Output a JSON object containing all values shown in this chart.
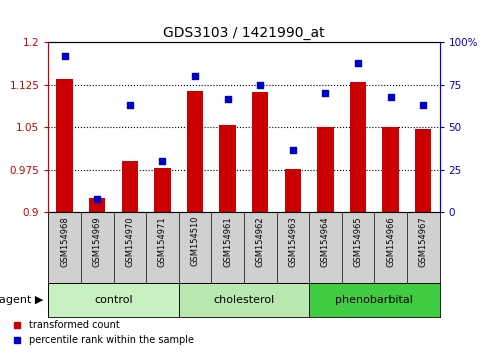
{
  "title": "GDS3103 / 1421990_at",
  "samples": [
    "GSM154968",
    "GSM154969",
    "GSM154970",
    "GSM154971",
    "GSM154510",
    "GSM154961",
    "GSM154962",
    "GSM154963",
    "GSM154964",
    "GSM154965",
    "GSM154966",
    "GSM154967"
  ],
  "transformed_count": [
    1.135,
    0.925,
    0.99,
    0.978,
    1.115,
    1.055,
    1.113,
    0.977,
    1.05,
    1.13,
    1.05,
    1.047
  ],
  "percentile_rank": [
    92,
    8,
    63,
    30,
    80,
    67,
    75,
    37,
    70,
    88,
    68,
    63
  ],
  "groups": [
    {
      "label": "control",
      "start": 0,
      "end": 4,
      "color": "#c8f0c0"
    },
    {
      "label": "cholesterol",
      "start": 4,
      "end": 8,
      "color": "#b8e8b0"
    },
    {
      "label": "phenobarbital",
      "start": 8,
      "end": 12,
      "color": "#40cc40"
    }
  ],
  "ylim_left": [
    0.9,
    1.2
  ],
  "ylim_right": [
    0,
    100
  ],
  "yticks_left": [
    0.9,
    0.975,
    1.05,
    1.125,
    1.2
  ],
  "ytick_labels_left": [
    "0.9",
    "0.975",
    "1.05",
    "1.125",
    "1.2"
  ],
  "yticks_right": [
    0,
    25,
    50,
    75,
    100
  ],
  "ytick_labels_right": [
    "0",
    "25",
    "50",
    "75",
    "100%"
  ],
  "bar_color": "#cc0000",
  "dot_color": "#0000cc",
  "bar_bottom": 0.9,
  "background_color": "#ffffff",
  "xlabel_bg_color": "#d0d0d0",
  "grid_ticks": [
    0.975,
    1.05,
    1.125
  ]
}
